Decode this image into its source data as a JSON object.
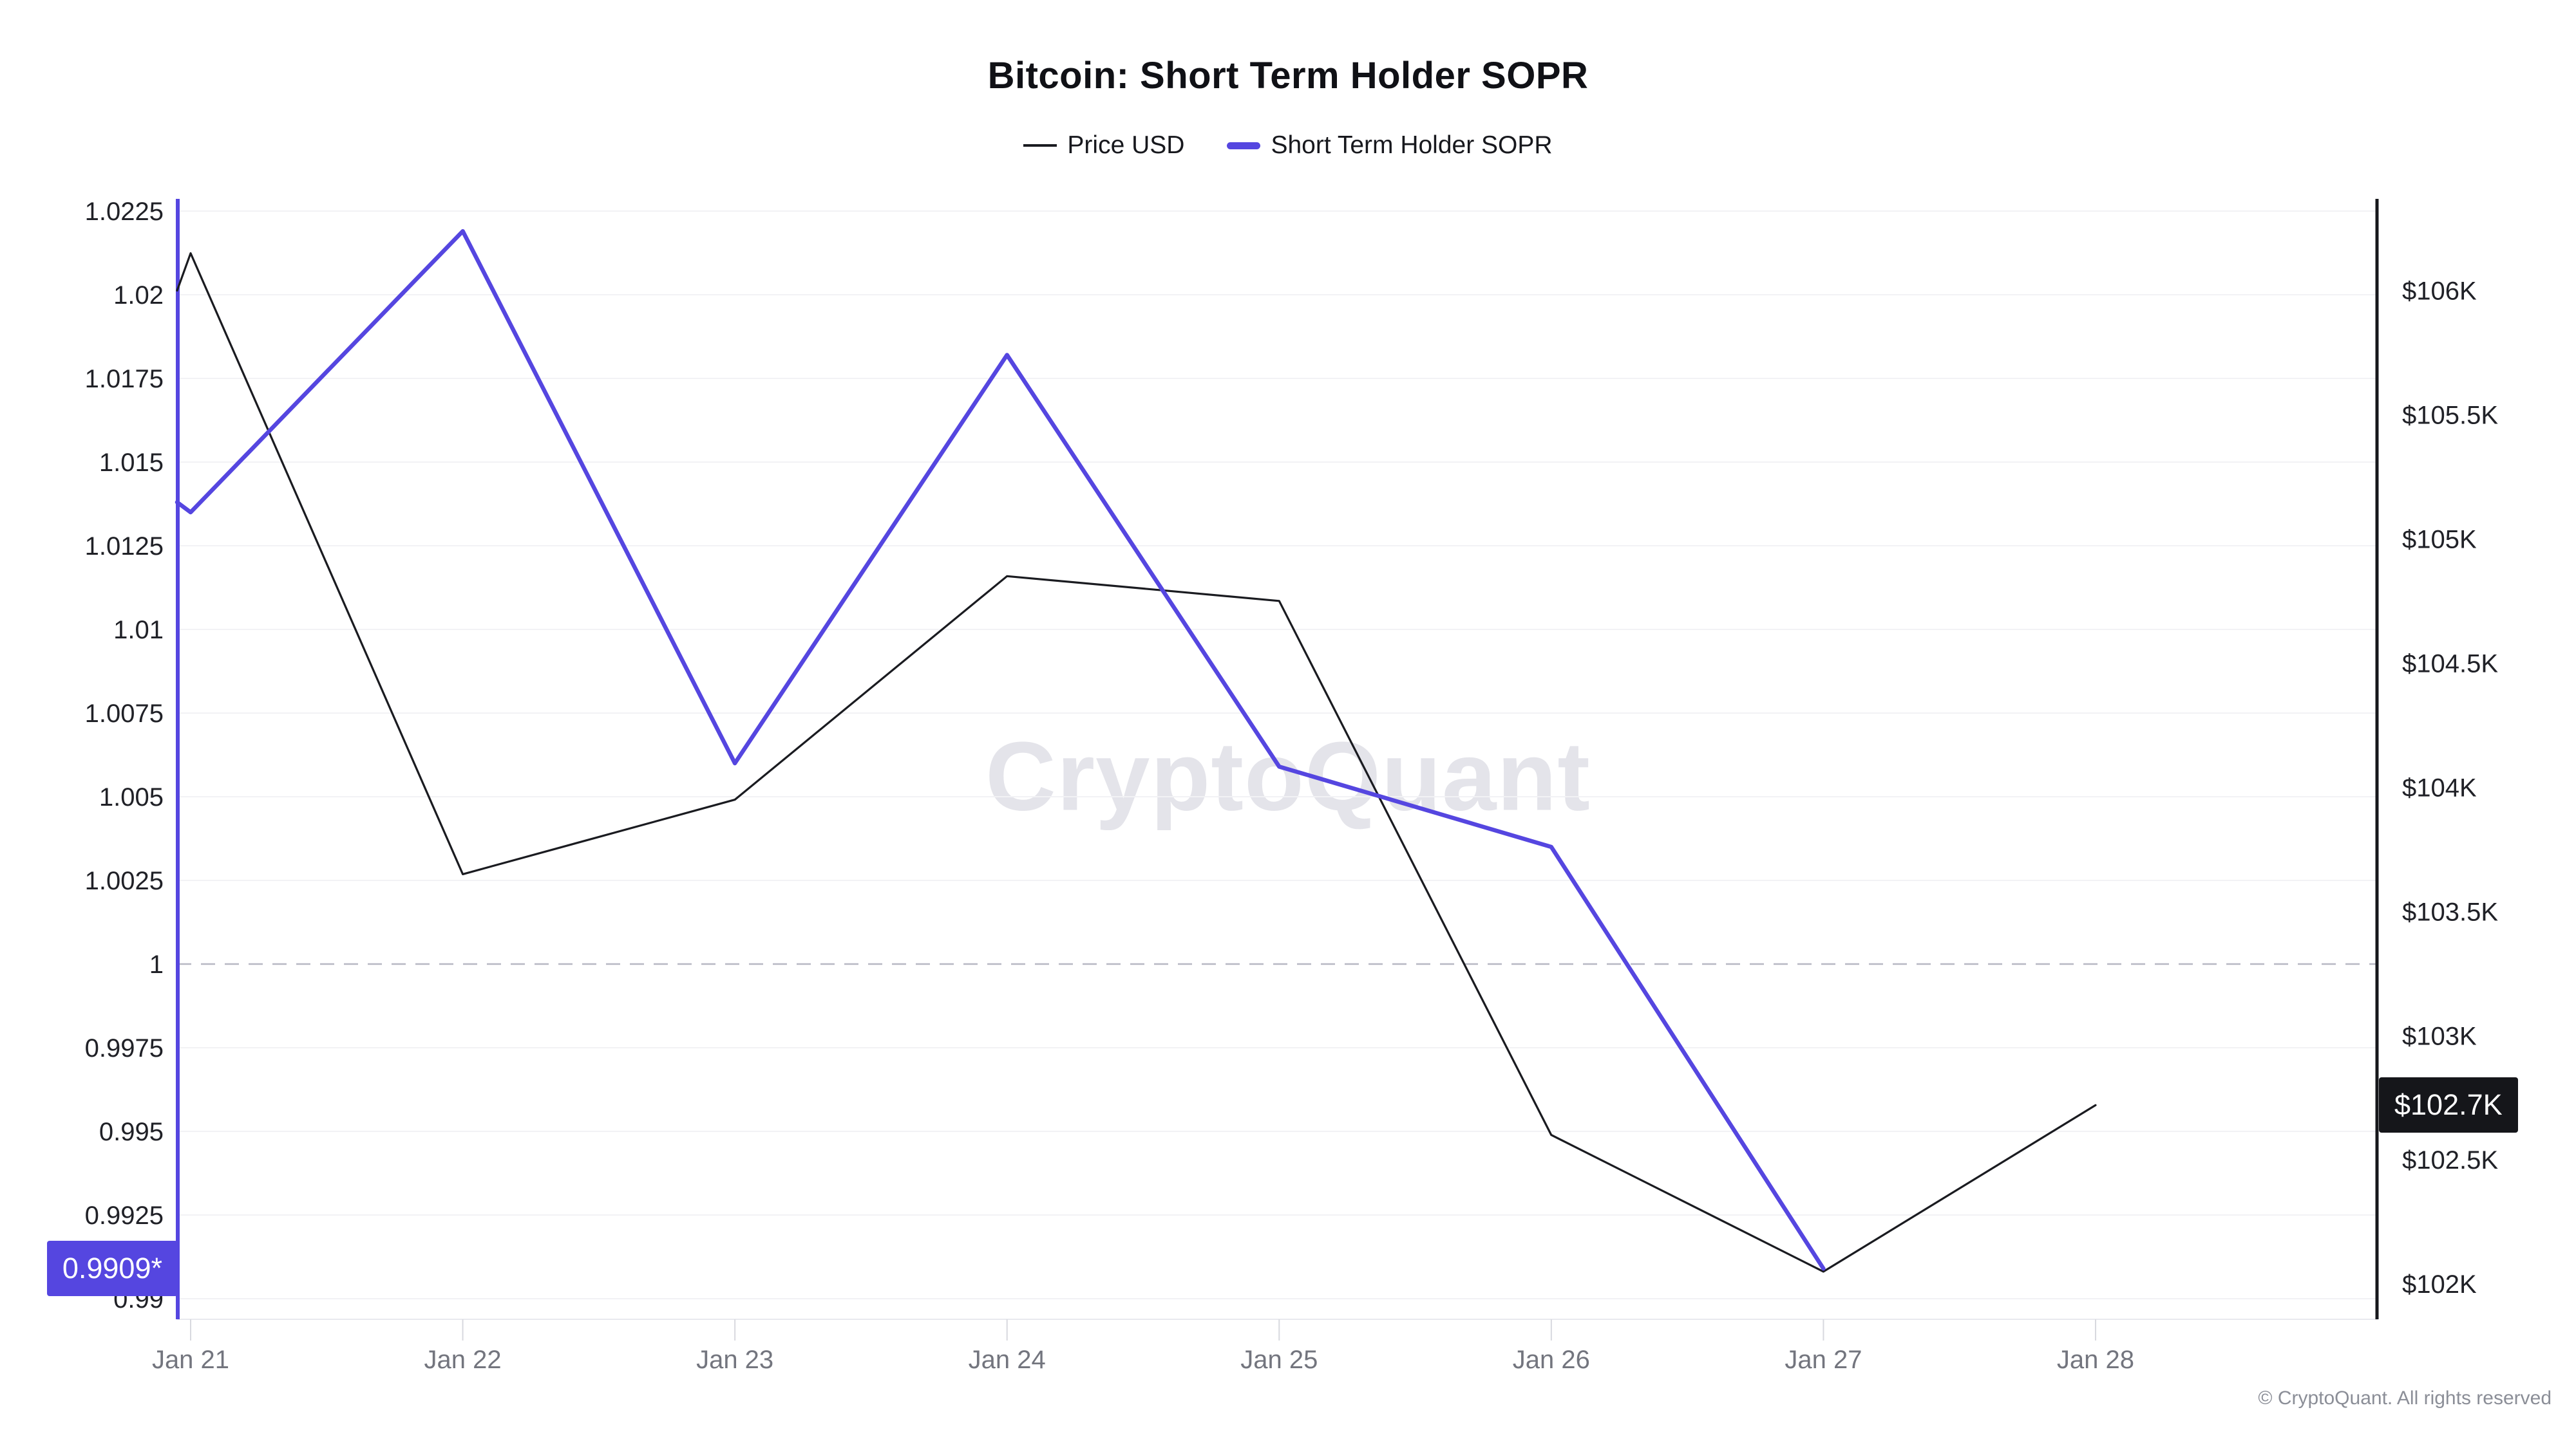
{
  "header": {
    "title": "Bitcoin: Short Term Holder SOPR"
  },
  "legend": {
    "items": [
      {
        "label": "Price USD",
        "swatch_color": "#3a3b40",
        "swatch": "thin-line"
      },
      {
        "label": "Short Term Holder SOPR",
        "swatch_color": "#5546e0",
        "swatch": "thick-line"
      }
    ]
  },
  "watermark": "CryptoQuant",
  "footer": {
    "copyright": "© CryptoQuant. All rights reserved"
  },
  "badges": {
    "sopr_last": "0.9909*",
    "price_last": "$102.7K"
  },
  "chart_data": {
    "type": "line",
    "title": "Bitcoin: Short Term Holder SOPR",
    "categories": [
      "Jan 21",
      "Jan 22",
      "Jan 23",
      "Jan 24",
      "Jan 25",
      "Jan 26",
      "Jan 27",
      "Jan 28"
    ],
    "series": [
      {
        "name": "Price USD",
        "axis": "right",
        "unit": "USD thousands",
        "color": "#1a1b20",
        "stroke_width": 3.2,
        "edge_start": 106.0,
        "values": [
          106.15,
          103.65,
          103.95,
          104.85,
          104.75,
          102.6,
          102.05,
          102.72
        ],
        "last_label": "$102.7K"
      },
      {
        "name": "Short Term Holder SOPR",
        "axis": "left",
        "unit": "ratio",
        "color": "#5546e0",
        "stroke_width": 6.5,
        "edge_start": 1.0138,
        "values": [
          1.0135,
          1.0219,
          1.006,
          1.0182,
          1.0059,
          1.0035,
          0.9909,
          null
        ],
        "last_label": "0.9909*"
      }
    ],
    "left_axis": {
      "ylim": [
        0.989385,
        1.022865
      ],
      "tick_values": [
        1.0225,
        1.02,
        1.0175,
        1.015,
        1.0125,
        1.01,
        1.0075,
        1.005,
        1.0025,
        1,
        0.9975,
        0.995,
        0.9925,
        0.99
      ],
      "tick_labels": [
        "1.0225",
        "1.02",
        "1.0175",
        "1.015",
        "1.0125",
        "1.01",
        "1.0075",
        "1.005",
        "1.0025",
        "1",
        "0.9975",
        "0.995",
        "0.9925",
        "0.99"
      ],
      "baseline": 1,
      "baseline_style": "dashed"
    },
    "right_axis": {
      "ylim": [
        101.858,
        106.369
      ],
      "tick_values": [
        106,
        105.5,
        105,
        104.5,
        104,
        103.5,
        103,
        102.5,
        102
      ],
      "tick_labels": [
        "$106K",
        "$105.5K",
        "$105K",
        "$104.5K",
        "$104K",
        "$103.5K",
        "$103K",
        "$102.5K",
        "$102K"
      ]
    },
    "grid": "horizontal-only",
    "legend_position": "top-center"
  }
}
